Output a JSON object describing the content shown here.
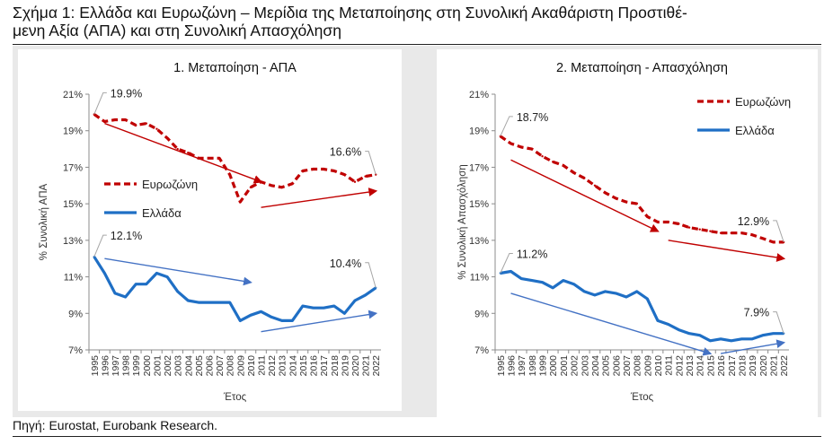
{
  "figure": {
    "title_line1": "Σχήμα 1: Ελλάδα και Ευρωζώνη – Μερίδια της Μεταποίησης στη Συνολική Ακαθάριστη Προστιθέ-",
    "title_line2": "μενη Αξία (ΑΠΑ) και στη Συνολική Απασχόληση",
    "source": "Πηγή: Eurostat, Eurobank Research."
  },
  "colors": {
    "eurozone": "#c00000",
    "greece": "#1f6fc5",
    "arrow_red": "#c00000",
    "arrow_blue": "#4472c4",
    "callout": "#a6a6a6",
    "panel_bg": "#e9e9e9"
  },
  "chart_data": [
    {
      "type": "line",
      "title": "1. Μεταποίηση - ΑΠΑ",
      "xlabel": "Έτος",
      "ylabel": "% Συνολική ΑΠΑ",
      "x": [
        "1995",
        "1996",
        "1997",
        "1998",
        "1999",
        "2000",
        "2001",
        "2002",
        "2003",
        "2004",
        "2005",
        "2006",
        "2007",
        "2008",
        "2009",
        "2010",
        "2011",
        "2012",
        "2013",
        "2014",
        "2015",
        "2016",
        "2017",
        "2018",
        "2019",
        "2020",
        "2021",
        "2022"
      ],
      "ylim": [
        7,
        21
      ],
      "yticks": [
        "7%",
        "9%",
        "11%",
        "13%",
        "15%",
        "17%",
        "19%",
        "21%"
      ],
      "grid": false,
      "legend": "center-left",
      "series": [
        {
          "name": "Ευρωζώνη",
          "style": "dashed",
          "values": [
            19.9,
            19.5,
            19.6,
            19.6,
            19.3,
            19.4,
            19.1,
            18.6,
            18.0,
            17.8,
            17.5,
            17.5,
            17.5,
            16.6,
            15.1,
            15.9,
            16.2,
            16.0,
            15.9,
            16.1,
            16.8,
            16.9,
            16.9,
            16.8,
            16.6,
            16.2,
            16.5,
            16.6
          ]
        },
        {
          "name": "Ελλάδα",
          "style": "solid",
          "values": [
            12.1,
            11.2,
            10.1,
            9.9,
            10.6,
            10.6,
            11.2,
            11.0,
            10.2,
            9.7,
            9.6,
            9.6,
            9.6,
            9.6,
            8.6,
            8.9,
            9.1,
            8.8,
            8.6,
            8.6,
            9.4,
            9.3,
            9.3,
            9.4,
            9.0,
            9.7,
            10.0,
            10.4
          ]
        }
      ],
      "annotations": [
        {
          "text": "19.9%",
          "series": "Ευρωζώνη",
          "year": "1995"
        },
        {
          "text": "16.6%",
          "series": "Ευρωζώνη",
          "year": "2022"
        },
        {
          "text": "12.1%",
          "series": "Ελλάδα",
          "year": "1995"
        },
        {
          "text": "10.4%",
          "series": "Ελλάδα",
          "year": "2022"
        }
      ],
      "trend_arrows": [
        {
          "color": "red",
          "from": [
            "1996",
            19.4
          ],
          "to": [
            "2011",
            16.2
          ]
        },
        {
          "color": "red",
          "from": [
            "2011",
            14.8
          ],
          "to": [
            "2022",
            15.7
          ]
        },
        {
          "color": "blue",
          "from": [
            "1996",
            12.0
          ],
          "to": [
            "2010",
            10.7
          ]
        },
        {
          "color": "blue",
          "from": [
            "2011",
            8.0
          ],
          "to": [
            "2022",
            9.0
          ]
        }
      ]
    },
    {
      "type": "line",
      "title": "2. Μεταποίηση - Απασχόληση",
      "xlabel": "Έτος",
      "ylabel": "% Συνολική Απασχόληση",
      "x": [
        "1995",
        "1996",
        "1997",
        "1998",
        "1999",
        "2000",
        "2001",
        "2002",
        "2003",
        "2004",
        "2005",
        "2006",
        "2007",
        "2008",
        "2009",
        "2010",
        "2011",
        "2012",
        "2013",
        "2014",
        "2015",
        "2016",
        "2017",
        "2018",
        "2019",
        "2020",
        "2021",
        "2022"
      ],
      "ylim": [
        7,
        21
      ],
      "yticks": [
        "7%",
        "9%",
        "11%",
        "13%",
        "15%",
        "17%",
        "19%",
        "21%"
      ],
      "grid": false,
      "legend": "top-right",
      "series": [
        {
          "name": "Ευρωζώνη",
          "style": "dashed",
          "values": [
            18.7,
            18.3,
            18.1,
            18.0,
            17.6,
            17.3,
            17.1,
            16.7,
            16.4,
            16.0,
            15.6,
            15.3,
            15.1,
            15.0,
            14.3,
            14.0,
            14.0,
            13.9,
            13.7,
            13.6,
            13.5,
            13.4,
            13.4,
            13.4,
            13.3,
            13.1,
            12.9,
            12.9
          ]
        },
        {
          "name": "Ελλάδα",
          "style": "solid",
          "values": [
            11.2,
            11.3,
            10.9,
            10.8,
            10.7,
            10.4,
            10.8,
            10.6,
            10.2,
            10.0,
            10.2,
            10.1,
            9.9,
            10.2,
            9.8,
            8.6,
            8.4,
            8.1,
            7.9,
            7.8,
            7.5,
            7.6,
            7.5,
            7.6,
            7.6,
            7.8,
            7.9,
            7.9
          ]
        }
      ],
      "annotations": [
        {
          "text": "18.7%",
          "series": "Ευρωζώνη",
          "year": "1995"
        },
        {
          "text": "12.9%",
          "series": "Ευρωζώνη",
          "year": "2022"
        },
        {
          "text": "11.2%",
          "series": "Ελλάδα",
          "year": "1995"
        },
        {
          "text": "7.9%",
          "series": "Ελλάδα",
          "year": "2022"
        }
      ],
      "trend_arrows": [
        {
          "color": "red",
          "from": [
            "1996",
            17.4
          ],
          "to": [
            "2010",
            13.5
          ]
        },
        {
          "color": "red",
          "from": [
            "2011",
            13.0
          ],
          "to": [
            "2022",
            12.0
          ]
        },
        {
          "color": "blue",
          "from": [
            "1996",
            10.1
          ],
          "to": [
            "2015",
            6.8
          ]
        },
        {
          "color": "blue",
          "from": [
            "2016",
            6.8
          ],
          "to": [
            "2022",
            7.4
          ]
        }
      ]
    }
  ]
}
